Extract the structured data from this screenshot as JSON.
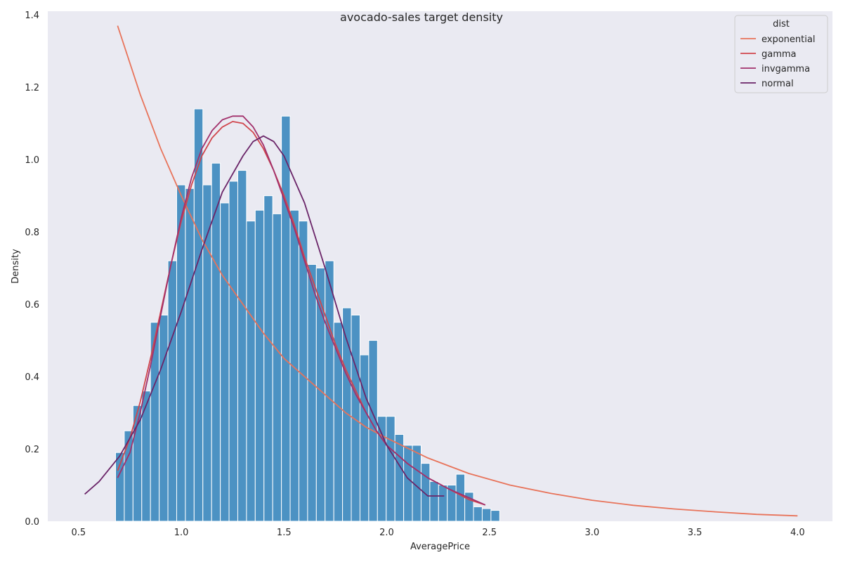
{
  "chart_data": {
    "type": "histogram",
    "title": "avocado-sales target density",
    "xlabel": "AveragePrice",
    "ylabel": "Density",
    "xlim": [
      0.35,
      4.17
    ],
    "ylim": [
      0,
      1.41
    ],
    "xticks": [
      "0.5",
      "1.0",
      "1.5",
      "2.0",
      "2.5",
      "3.0",
      "3.5",
      "4.0"
    ],
    "yticks": [
      "0.0",
      "0.2",
      "0.4",
      "0.6",
      "0.8",
      "1.0",
      "1.2",
      "1.4"
    ],
    "grid": false,
    "legend": {
      "title": "dist",
      "position": "top-right",
      "entries": [
        "exponential",
        "gamma",
        "invgamma",
        "normal"
      ]
    },
    "bar_color": "#4c92c3",
    "histogram": {
      "bin_start": 0.68,
      "bin_width": 0.0425,
      "densities": [
        0.19,
        0.25,
        0.32,
        0.36,
        0.55,
        0.57,
        0.72,
        0.93,
        0.92,
        1.14,
        0.93,
        0.99,
        0.88,
        0.94,
        0.97,
        0.83,
        0.86,
        0.9,
        0.85,
        1.12,
        0.86,
        0.83,
        0.71,
        0.7,
        0.72,
        0.55,
        0.59,
        0.57,
        0.46,
        0.5,
        0.29,
        0.29,
        0.24,
        0.21,
        0.21,
        0.16,
        0.11,
        0.1,
        0.1,
        0.13,
        0.08,
        0.04,
        0.035,
        0.03
      ]
    },
    "series": [
      {
        "name": "exponential",
        "color": "#e8735a",
        "x": [
          0.69,
          0.8,
          0.9,
          1.0,
          1.1,
          1.2,
          1.3,
          1.4,
          1.5,
          1.6,
          1.7,
          1.8,
          1.9,
          2.0,
          2.2,
          2.4,
          2.6,
          2.8,
          3.0,
          3.2,
          3.4,
          3.6,
          3.8,
          4.0
        ],
        "y": [
          1.37,
          1.18,
          1.03,
          0.9,
          0.78,
          0.68,
          0.6,
          0.52,
          0.45,
          0.4,
          0.35,
          0.3,
          0.26,
          0.23,
          0.175,
          0.132,
          0.1,
          0.077,
          0.058,
          0.044,
          0.034,
          0.026,
          0.019,
          0.015
        ]
      },
      {
        "name": "gamma",
        "color": "#d0454c",
        "x": [
          0.69,
          0.75,
          0.8,
          0.85,
          0.9,
          0.95,
          1.0,
          1.05,
          1.1,
          1.15,
          1.2,
          1.25,
          1.3,
          1.35,
          1.4,
          1.45,
          1.5,
          1.55,
          1.6,
          1.65,
          1.7,
          1.75,
          1.8,
          1.85,
          1.9,
          1.95,
          2.0,
          2.1,
          2.2,
          2.3,
          2.4,
          2.48
        ],
        "y": [
          0.14,
          0.23,
          0.33,
          0.45,
          0.58,
          0.71,
          0.83,
          0.93,
          1.01,
          1.06,
          1.09,
          1.105,
          1.1,
          1.075,
          1.03,
          0.97,
          0.9,
          0.82,
          0.73,
          0.65,
          0.57,
          0.49,
          0.42,
          0.36,
          0.3,
          0.25,
          0.21,
          0.16,
          0.12,
          0.09,
          0.06,
          0.045
        ]
      },
      {
        "name": "invgamma",
        "color": "#a2306b",
        "x": [
          0.69,
          0.75,
          0.8,
          0.85,
          0.9,
          0.95,
          1.0,
          1.05,
          1.1,
          1.15,
          1.2,
          1.25,
          1.3,
          1.35,
          1.4,
          1.45,
          1.5,
          1.55,
          1.6,
          1.65,
          1.7,
          1.75,
          1.8,
          1.85,
          1.9,
          1.95,
          2.0,
          2.1,
          2.2,
          2.3,
          2.4,
          2.48
        ],
        "y": [
          0.12,
          0.19,
          0.3,
          0.43,
          0.57,
          0.71,
          0.84,
          0.95,
          1.03,
          1.08,
          1.11,
          1.12,
          1.12,
          1.09,
          1.04,
          0.97,
          0.89,
          0.81,
          0.72,
          0.63,
          0.55,
          0.48,
          0.41,
          0.35,
          0.3,
          0.25,
          0.21,
          0.16,
          0.12,
          0.09,
          0.065,
          0.045
        ]
      },
      {
        "name": "normal",
        "color": "#6a2468",
        "x": [
          0.53,
          0.6,
          0.7,
          0.8,
          0.9,
          1.0,
          1.1,
          1.2,
          1.3,
          1.35,
          1.4,
          1.45,
          1.5,
          1.6,
          1.7,
          1.8,
          1.9,
          2.0,
          2.1,
          2.2,
          2.28
        ],
        "y": [
          0.075,
          0.11,
          0.18,
          0.28,
          0.42,
          0.58,
          0.75,
          0.91,
          1.01,
          1.05,
          1.065,
          1.05,
          1.01,
          0.88,
          0.7,
          0.51,
          0.34,
          0.21,
          0.12,
          0.07,
          0.07
        ]
      }
    ]
  }
}
